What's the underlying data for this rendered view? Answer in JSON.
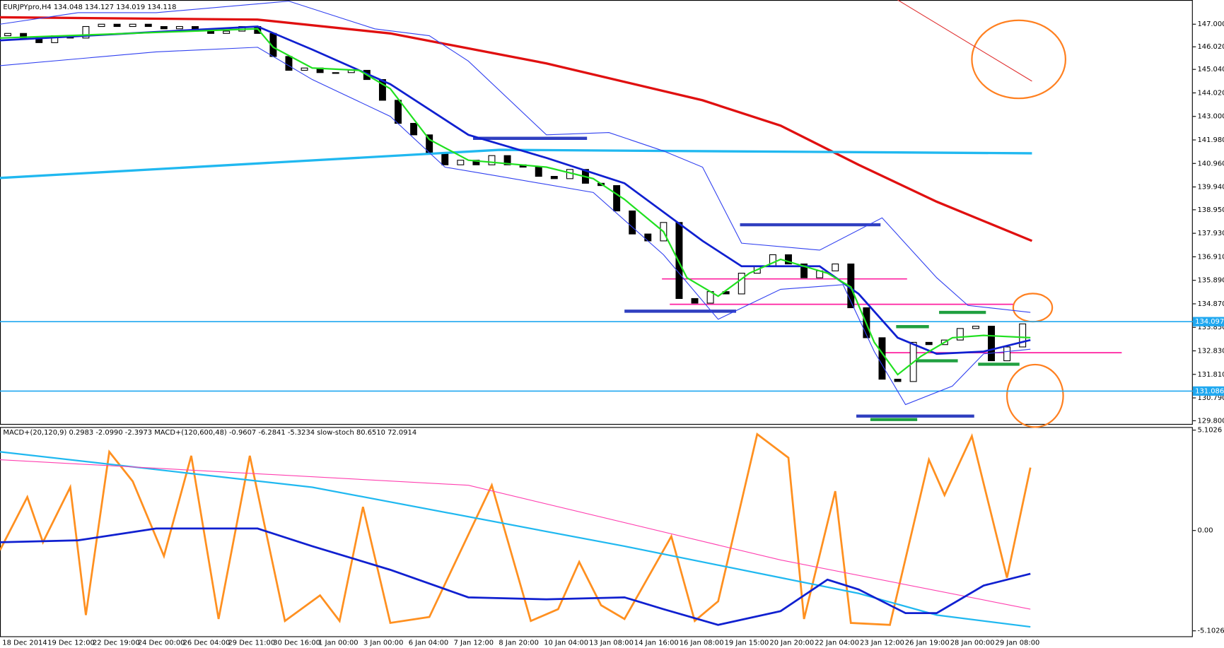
{
  "chart_data": [
    {
      "type": "candlestick",
      "title": "EURJPYpro,H4  134.048 134.127 134.019 134.118",
      "categories": [
        "18 Dec 2014",
        "19 Dec 12:00",
        "22 Dec 19:00",
        "24 Dec 00:00",
        "26 Dec 04:00",
        "29 Dec 11:00",
        "30 Dec 16:00",
        "1 Jan 00:00",
        "3 Jan 00:00",
        "6 Jan 04:00",
        "7 Jan 12:00",
        "8 Jan 20:00",
        "10 Jan 04:00",
        "13 Jan 08:00",
        "14 Jan 16:00",
        "16 Jan 08:00",
        "19 Jan 15:00",
        "20 Jan 20:00",
        "22 Jan 04:00",
        "23 Jan 12:00",
        "26 Jan 19:00",
        "28 Jan 00:00",
        "29 Jan 08:00"
      ],
      "xlim": [
        -0.5,
        75.9
      ],
      "ylim": [
        129.66,
        148.05
      ],
      "yticks": [
        {
          "value": 147.0,
          "label": "147.000"
        },
        {
          "value": 146.02,
          "label": "146.020"
        },
        {
          "value": 145.04,
          "label": "145.040"
        },
        {
          "value": 144.02,
          "label": "144.020"
        },
        {
          "value": 143.0,
          "label": "143.000"
        },
        {
          "value": 141.98,
          "label": "141.980"
        },
        {
          "value": 140.96,
          "label": "140.960"
        },
        {
          "value": 139.94,
          "label": "139.940"
        },
        {
          "value": 138.95,
          "label": "138.950"
        },
        {
          "value": 137.93,
          "label": "137.930"
        },
        {
          "value": 136.91,
          "label": "136.910"
        },
        {
          "value": 135.89,
          "label": "135.890"
        },
        {
          "value": 134.87,
          "label": "134.870"
        },
        {
          "value": 133.85,
          "label": "133.850"
        },
        {
          "value": 132.83,
          "label": "132.830"
        },
        {
          "value": 131.81,
          "label": "131.810"
        },
        {
          "value": 130.79,
          "label": "130.790"
        },
        {
          "value": 129.8,
          "label": "129.800"
        }
      ],
      "open": [
        146.5,
        146.6,
        146.4,
        146.2,
        146.5,
        146.4,
        146.9,
        147.0,
        146.9,
        147.0,
        146.9,
        146.8,
        146.9,
        146.7,
        146.6,
        146.7,
        146.9,
        146.6,
        145.6,
        145.0,
        145.1,
        144.9,
        144.9,
        145.0,
        144.6,
        143.7,
        142.7,
        142.2,
        141.4,
        140.9,
        141.1,
        140.9,
        141.3,
        140.9,
        140.8,
        140.4,
        140.3,
        140.7,
        140.1,
        140.0,
        138.9,
        137.9,
        137.6,
        138.4,
        135.1,
        134.9,
        135.4,
        135.3,
        136.2,
        136.5,
        137.0,
        136.6,
        136.0,
        136.3,
        136.6,
        134.7,
        133.4,
        131.6,
        131.5,
        133.2,
        133.1,
        133.3,
        133.8,
        133.9,
        132.4,
        133.0
      ],
      "close": [
        146.6,
        146.4,
        146.2,
        146.5,
        146.4,
        146.9,
        147.0,
        146.9,
        147.0,
        146.9,
        146.8,
        146.9,
        146.7,
        146.6,
        146.7,
        146.9,
        146.6,
        145.6,
        145.0,
        145.1,
        144.9,
        144.9,
        145.0,
        144.6,
        143.7,
        142.7,
        142.2,
        141.4,
        140.9,
        141.1,
        140.9,
        141.3,
        140.9,
        140.8,
        140.4,
        140.3,
        140.7,
        140.1,
        140.0,
        138.9,
        137.9,
        137.6,
        138.4,
        135.1,
        134.9,
        135.4,
        135.3,
        136.2,
        136.5,
        137.0,
        136.6,
        136.0,
        136.3,
        136.6,
        134.7,
        133.4,
        131.6,
        131.5,
        133.2,
        133.1,
        133.3,
        133.8,
        133.9,
        132.4,
        133.0,
        134.0
      ],
      "lines": [
        {
          "color": "#e01010",
          "width": 3,
          "x": [
            -0.5,
            16,
            24.5,
            34.5,
            44.5,
            49.5,
            54.5,
            59.5,
            65.6
          ],
          "values": [
            147.3,
            147.2,
            146.6,
            145.3,
            143.7,
            142.6,
            140.9,
            139.3,
            137.6
          ]
        },
        {
          "color": "#20b8f0",
          "width": 3,
          "x": [
            -0.5,
            31.5,
            65.6
          ],
          "values": [
            140.33,
            141.55,
            141.4
          ]
        },
        {
          "color": "#3040f0",
          "width": 1,
          "x": [
            -0.5,
            4.5,
            9.5,
            18,
            23.5,
            27,
            29.5,
            34.5,
            38.5,
            42,
            44.5,
            47,
            52,
            56,
            59.5,
            61.5,
            65.5
          ],
          "values": [
            147.0,
            147.5,
            147.5,
            148.0,
            146.8,
            146.5,
            145.4,
            142.2,
            142.3,
            141.5,
            140.8,
            137.5,
            137.2,
            138.6,
            136.0,
            134.8,
            134.5
          ]
        },
        {
          "color": "#3040f0",
          "width": 1,
          "x": [
            -0.5,
            9.5,
            16,
            19.5,
            24.5,
            28,
            31.5,
            37.5,
            42,
            45.5,
            49.5,
            53.5,
            55.5,
            57.5,
            60.5,
            62.5,
            65.5
          ],
          "values": [
            145.2,
            145.8,
            146.0,
            144.6,
            143.0,
            140.8,
            140.4,
            139.7,
            137.0,
            134.2,
            135.5,
            135.7,
            132.8,
            130.5,
            131.3,
            132.7,
            132.9
          ]
        },
        {
          "color": "#1020d0",
          "width": 2.5,
          "x": [
            -0.5,
            16,
            19.5,
            24.5,
            29.5,
            34.5,
            39.5,
            44.5,
            47,
            52,
            54.5,
            57,
            59.5,
            62.5,
            65.5
          ],
          "values": [
            146.3,
            146.9,
            145.9,
            144.4,
            142.2,
            141.2,
            140.1,
            137.6,
            136.5,
            136.5,
            135.3,
            133.4,
            132.7,
            132.8,
            133.3
          ]
        },
        {
          "color": "#20e020",
          "width": 2,
          "x": [
            -0.5,
            16,
            17,
            19.5,
            22.5,
            24.5,
            27,
            29.5,
            34.5,
            37.5,
            39.5,
            42,
            43.5,
            45.5,
            47.5,
            49.5,
            52.5,
            54,
            55.5,
            57,
            58.5,
            60.5,
            62.5,
            65.5
          ],
          "values": [
            146.4,
            146.8,
            146.0,
            145.1,
            145.0,
            144.2,
            142.0,
            141.1,
            140.8,
            140.3,
            139.4,
            138.0,
            136.0,
            135.2,
            136.2,
            136.8,
            136.2,
            135.6,
            133.2,
            131.8,
            132.6,
            133.4,
            133.5,
            133.4
          ]
        }
      ],
      "levels": [
        {
          "color": "#3040c0",
          "value": 142.05,
          "from": 29.8,
          "to": 37.1
        },
        {
          "color": "#3040c0",
          "value": 138.3,
          "from": 46.9,
          "to": 55.9
        },
        {
          "color": "#3040c0",
          "value": 134.55,
          "from": 39.5,
          "to": 46.65
        },
        {
          "color": "#3040c0",
          "value": 130.0,
          "from": 54.35,
          "to": 61.9
        },
        {
          "color": "#ff20a0",
          "value": 135.95,
          "from": 41.9,
          "to": 57.6
        },
        {
          "color": "#ff20a0",
          "value": 134.85,
          "from": 42.4,
          "to": 64.4
        },
        {
          "color": "#ff20a0",
          "value": 132.75,
          "from": 55.9,
          "to": 71.35
        },
        {
          "color": "#20a040",
          "value": 134.5,
          "from": 59.65,
          "to": 62.65
        },
        {
          "color": "#20a040",
          "value": 133.88,
          "from": 56.9,
          "to": 59
        },
        {
          "color": "#20a040",
          "value": 132.4,
          "from": 58.15,
          "to": 60.85
        },
        {
          "color": "#20a040",
          "value": 132.25,
          "from": 62.15,
          "to": 64.8
        },
        {
          "color": "#20a040",
          "value": 129.85,
          "from": 55.25,
          "to": 58.25
        }
      ],
      "price_lines": [
        {
          "value": 134.097,
          "label": "134.097"
        },
        {
          "value": 131.086,
          "label": "131.086"
        }
      ]
    },
    {
      "type": "oscillator",
      "title": "MACD+(20,120,9) 0.2983 -2.0990 -2.3973  MACD+(120,600,48) -0.9607 -6.2841 -5.3234  slow-stoch 80.6510 72.0914",
      "xlim": [
        -0.5,
        75.9
      ],
      "ylim": [
        -5.38,
        5.22
      ],
      "yticks": [
        {
          "value": 5.1026,
          "label": "5.1026"
        },
        {
          "value": 0,
          "label": "0.00"
        },
        -5.1026
      ],
      "lines": [
        {
          "color": "#ff9020",
          "width": 2.5,
          "x": [
            -0.5,
            1.25,
            2.25,
            4,
            5,
            6.5,
            8,
            10,
            11.75,
            13.5,
            15.5,
            17.75,
            20,
            21.25,
            22.75,
            24.5,
            27,
            31,
            33.5,
            35.25,
            36.6,
            38,
            39.5,
            42.5,
            44,
            45.5,
            48,
            50,
            51,
            53,
            54,
            56.5,
            59,
            60,
            61.75,
            64,
            65.5
          ],
          "values": [
            -1,
            1.7,
            -0.6,
            2.2,
            -4.3,
            4.0,
            2.5,
            -1.3,
            3.8,
            -4.5,
            3.8,
            -4.6,
            -3.3,
            -4.6,
            1.2,
            -4.7,
            -4.4,
            2.3,
            -4.6,
            -4.0,
            -1.6,
            -3.8,
            -4.5,
            -0.3,
            -4.6,
            -3.6,
            4.9,
            3.7,
            -4.5,
            2.0,
            -4.7,
            -4.8,
            3.6,
            1.8,
            4.8,
            -2.4,
            3.2
          ]
        },
        {
          "color": "#20b8f0",
          "width": 2,
          "x": [
            -0.5,
            19.5,
            39.5,
            49.5,
            54.5,
            59.5,
            65.5
          ],
          "values": [
            4.0,
            2.2,
            -0.8,
            -2.4,
            -3.2,
            -4.3,
            -4.9
          ]
        },
        {
          "color": "#ff40b0",
          "width": 1,
          "x": [
            -0.5,
            29.5,
            49.5,
            65.5
          ],
          "values": [
            3.6,
            2.3,
            -1.5,
            -4.0
          ]
        },
        {
          "color": "#1020d0",
          "width": 2.5,
          "x": [
            -0.5,
            4.5,
            9.5,
            16,
            19.5,
            24.5,
            29.5,
            34.5,
            39.5,
            42,
            45.5,
            49.5,
            52.5,
            54.5,
            57.5,
            59.5,
            62.5,
            65.5
          ],
          "values": [
            -0.6,
            -0.5,
            0.1,
            0.1,
            -0.8,
            -2.0,
            -3.4,
            -3.5,
            -3.4,
            -4.0,
            -4.8,
            -4.1,
            -2.5,
            -3.0,
            -4.2,
            -4.2,
            -2.8,
            -2.2
          ]
        }
      ]
    }
  ]
}
